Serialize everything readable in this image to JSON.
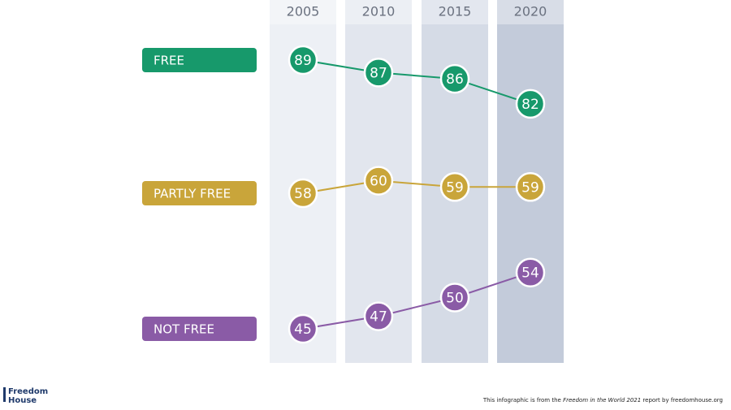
{
  "chart_data": {
    "type": "line",
    "categories": [
      "2005",
      "2010",
      "2015",
      "2020"
    ],
    "series": [
      {
        "name": "FREE",
        "color": "#17996b",
        "values": [
          89,
          87,
          86,
          82
        ]
      },
      {
        "name": "PARTLY FREE",
        "color": "#c9a53a",
        "values": [
          58,
          60,
          59,
          59
        ]
      },
      {
        "name": "NOT FREE",
        "color": "#8a5ba6",
        "values": [
          45,
          47,
          50,
          54
        ]
      }
    ]
  },
  "footer": {
    "logo": [
      "Freedom",
      "House"
    ],
    "note": [
      "This infographic is from the ",
      "Freedom in the World 2021",
      " report by freedomhouse.org"
    ]
  }
}
